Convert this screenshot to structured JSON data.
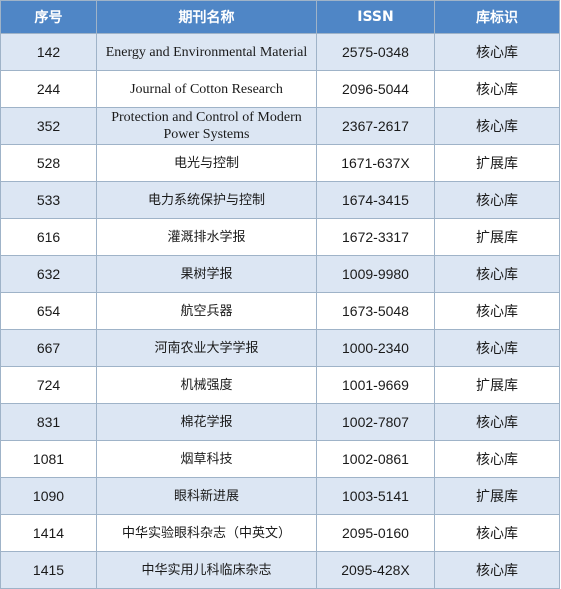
{
  "table": {
    "headers": {
      "no": "序号",
      "name": "期刊名称",
      "issn": "ISSN",
      "flag": "库标识"
    },
    "rows": [
      {
        "no": "142",
        "name": "Energy and Environmental Material",
        "issn": "2575-0348",
        "flag": "核心库",
        "latin": true
      },
      {
        "no": "244",
        "name": "Journal of Cotton Research",
        "issn": "2096-5044",
        "flag": "核心库",
        "latin": true
      },
      {
        "no": "352",
        "name": "Protection and Control of Modern Power Systems",
        "issn": "2367-2617",
        "flag": "核心库",
        "latin": true
      },
      {
        "no": "528",
        "name": "电光与控制",
        "issn": "1671-637X",
        "flag": "扩展库"
      },
      {
        "no": "533",
        "name": "电力系统保护与控制",
        "issn": "1674-3415",
        "flag": "核心库"
      },
      {
        "no": "616",
        "name": "灌溉排水学报",
        "issn": "1672-3317",
        "flag": "扩展库"
      },
      {
        "no": "632",
        "name": "果树学报",
        "issn": "1009-9980",
        "flag": "核心库"
      },
      {
        "no": "654",
        "name": "航空兵器",
        "issn": "1673-5048",
        "flag": "核心库"
      },
      {
        "no": "667",
        "name": "河南农业大学学报",
        "issn": "1000-2340",
        "flag": "核心库"
      },
      {
        "no": "724",
        "name": "机械强度",
        "issn": "1001-9669",
        "flag": "扩展库"
      },
      {
        "no": "831",
        "name": "棉花学报",
        "issn": "1002-7807",
        "flag": "核心库"
      },
      {
        "no": "1081",
        "name": "烟草科技",
        "issn": "1002-0861",
        "flag": "核心库"
      },
      {
        "no": "1090",
        "name": "眼科新进展",
        "issn": "1003-5141",
        "flag": "扩展库"
      },
      {
        "no": "1414",
        "name": "中华实验眼科杂志（中英文）",
        "issn": "2095-0160",
        "flag": "核心库"
      },
      {
        "no": "1415",
        "name": "中华实用儿科临床杂志",
        "issn": "2095-428X",
        "flag": "核心库"
      }
    ]
  }
}
